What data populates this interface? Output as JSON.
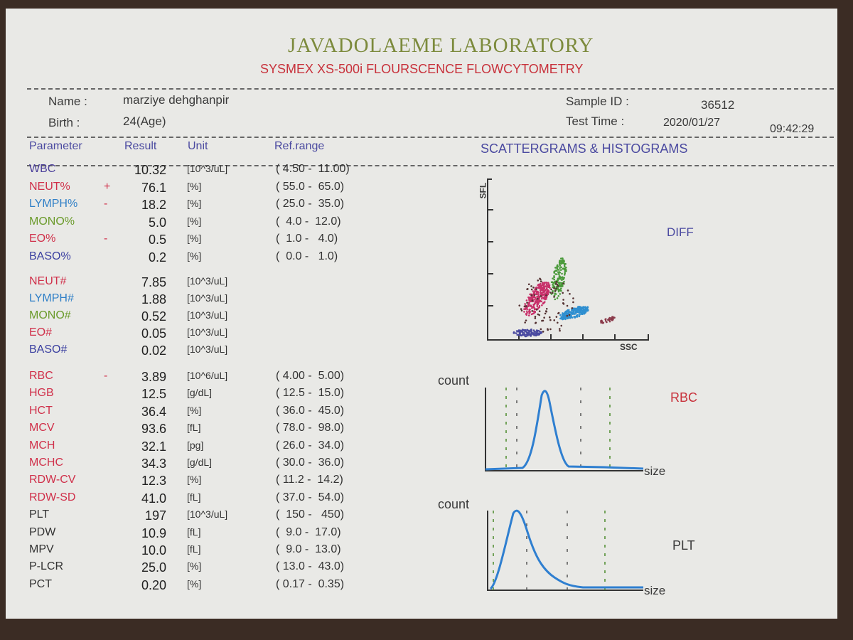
{
  "header": {
    "title": "JAVADOLAEME LABORATORY",
    "subtitle": "SYSMEX XS-500i FLOURSCENCE FLOWCYTOMETRY"
  },
  "patient": {
    "name_label": "Name :",
    "name": "marziye dehghanpir",
    "birth_label": "Birth :",
    "birth": "24(Age)",
    "sample_label": "Sample ID :",
    "sample_id": "36512",
    "time_label": "Test Time :",
    "date": "2020/01/27",
    "time": "09:42:29"
  },
  "table": {
    "headers": [
      "Parameter",
      "Result",
      "Unit",
      "Ref.range"
    ],
    "groups": [
      [
        {
          "name": "WBC",
          "color": "#4b3f9a",
          "result": "10.32",
          "unit": "[10^3/uL]",
          "range": "( 4.50 -  11.00)"
        },
        {
          "name": "NEUT%",
          "color": "#d0304a",
          "flag": "+",
          "result": "76.1",
          "unit": "[%]",
          "range": "( 55.0 -  65.0)"
        },
        {
          "name": "LYMPH%",
          "color": "#2f7fc7",
          "flag": "-",
          "result": "18.2",
          "unit": "[%]",
          "range": "( 25.0 -  35.0)"
        },
        {
          "name": "MONO%",
          "color": "#6a9a2a",
          "result": "5.0",
          "unit": "[%]",
          "range": "(  4.0 -  12.0)"
        },
        {
          "name": "EO%",
          "color": "#d0304a",
          "flag": "-",
          "result": "0.5",
          "unit": "[%]",
          "range": "(  1.0 -   4.0)"
        },
        {
          "name": "BASO%",
          "color": "#3a3fa0",
          "result": "0.2",
          "unit": "[%]",
          "range": "(  0.0 -   1.0)"
        }
      ],
      [
        {
          "name": "NEUT#",
          "color": "#d0304a",
          "result": "7.85",
          "unit": "[10^3/uL]"
        },
        {
          "name": "LYMPH#",
          "color": "#2f7fc7",
          "result": "1.88",
          "unit": "[10^3/uL]"
        },
        {
          "name": "MONO#",
          "color": "#6a9a2a",
          "result": "0.52",
          "unit": "[10^3/uL]"
        },
        {
          "name": "EO#",
          "color": "#d0304a",
          "result": "0.05",
          "unit": "[10^3/uL]"
        },
        {
          "name": "BASO#",
          "color": "#3a3fa0",
          "result": "0.02",
          "unit": "[10^3/uL]"
        }
      ],
      [
        {
          "name": "RBC",
          "color": "#d0304a",
          "flag": "-",
          "result": "3.89",
          "unit": "[10^6/uL]",
          "range": "( 4.00 -  5.00)"
        },
        {
          "name": "HGB",
          "color": "#d0304a",
          "result": "12.5",
          "unit": "[g/dL]",
          "range": "( 12.5 -  15.0)"
        },
        {
          "name": "HCT",
          "color": "#d0304a",
          "result": "36.4",
          "unit": "[%]",
          "range": "( 36.0 -  45.0)"
        },
        {
          "name": "MCV",
          "color": "#d0304a",
          "result": "93.6",
          "unit": "[fL]",
          "range": "( 78.0 -  98.0)"
        },
        {
          "name": "MCH",
          "color": "#d0304a",
          "result": "32.1",
          "unit": "[pg]",
          "range": "( 26.0 -  34.0)"
        },
        {
          "name": "MCHC",
          "color": "#d0304a",
          "result": "34.3",
          "unit": "[g/dL]",
          "range": "( 30.0 -  36.0)"
        },
        {
          "name": "RDW-CV",
          "color": "#d0304a",
          "result": "12.3",
          "unit": "[%]",
          "range": "( 11.2 -  14.2)"
        },
        {
          "name": "RDW-SD",
          "color": "#d0304a",
          "result": "41.0",
          "unit": "[fL]",
          "range": "( 37.0 -  54.0)"
        },
        {
          "name": "PLT",
          "color": "#333333",
          "result": "197",
          "unit": "[10^3/uL]",
          "range": "(  150 -   450)"
        },
        {
          "name": "PDW",
          "color": "#333333",
          "result": "10.9",
          "unit": "[fL]",
          "range": "(  9.0 -  17.0)"
        },
        {
          "name": "MPV",
          "color": "#333333",
          "result": "10.0",
          "unit": "[fL]",
          "range": "(  9.0 -  13.0)"
        },
        {
          "name": "P-LCR",
          "color": "#333333",
          "result": "25.0",
          "unit": "[%]",
          "range": "( 13.0 -  43.0)"
        },
        {
          "name": "PCT",
          "color": "#333333",
          "result": "0.20",
          "unit": "[%]",
          "range": "( 0.17 -  0.35)"
        }
      ]
    ]
  },
  "graphs": {
    "title": "SCATTERGRAMS & HISTOGRAMS",
    "scatter": {
      "y_label": "SFL",
      "x_label": "SSC",
      "name": "DIFF"
    },
    "rbc": {
      "y_label": "count",
      "x_label": "size",
      "name": "RBC"
    },
    "plt": {
      "y_label": "count",
      "x_label": "size",
      "name": "PLT"
    }
  }
}
